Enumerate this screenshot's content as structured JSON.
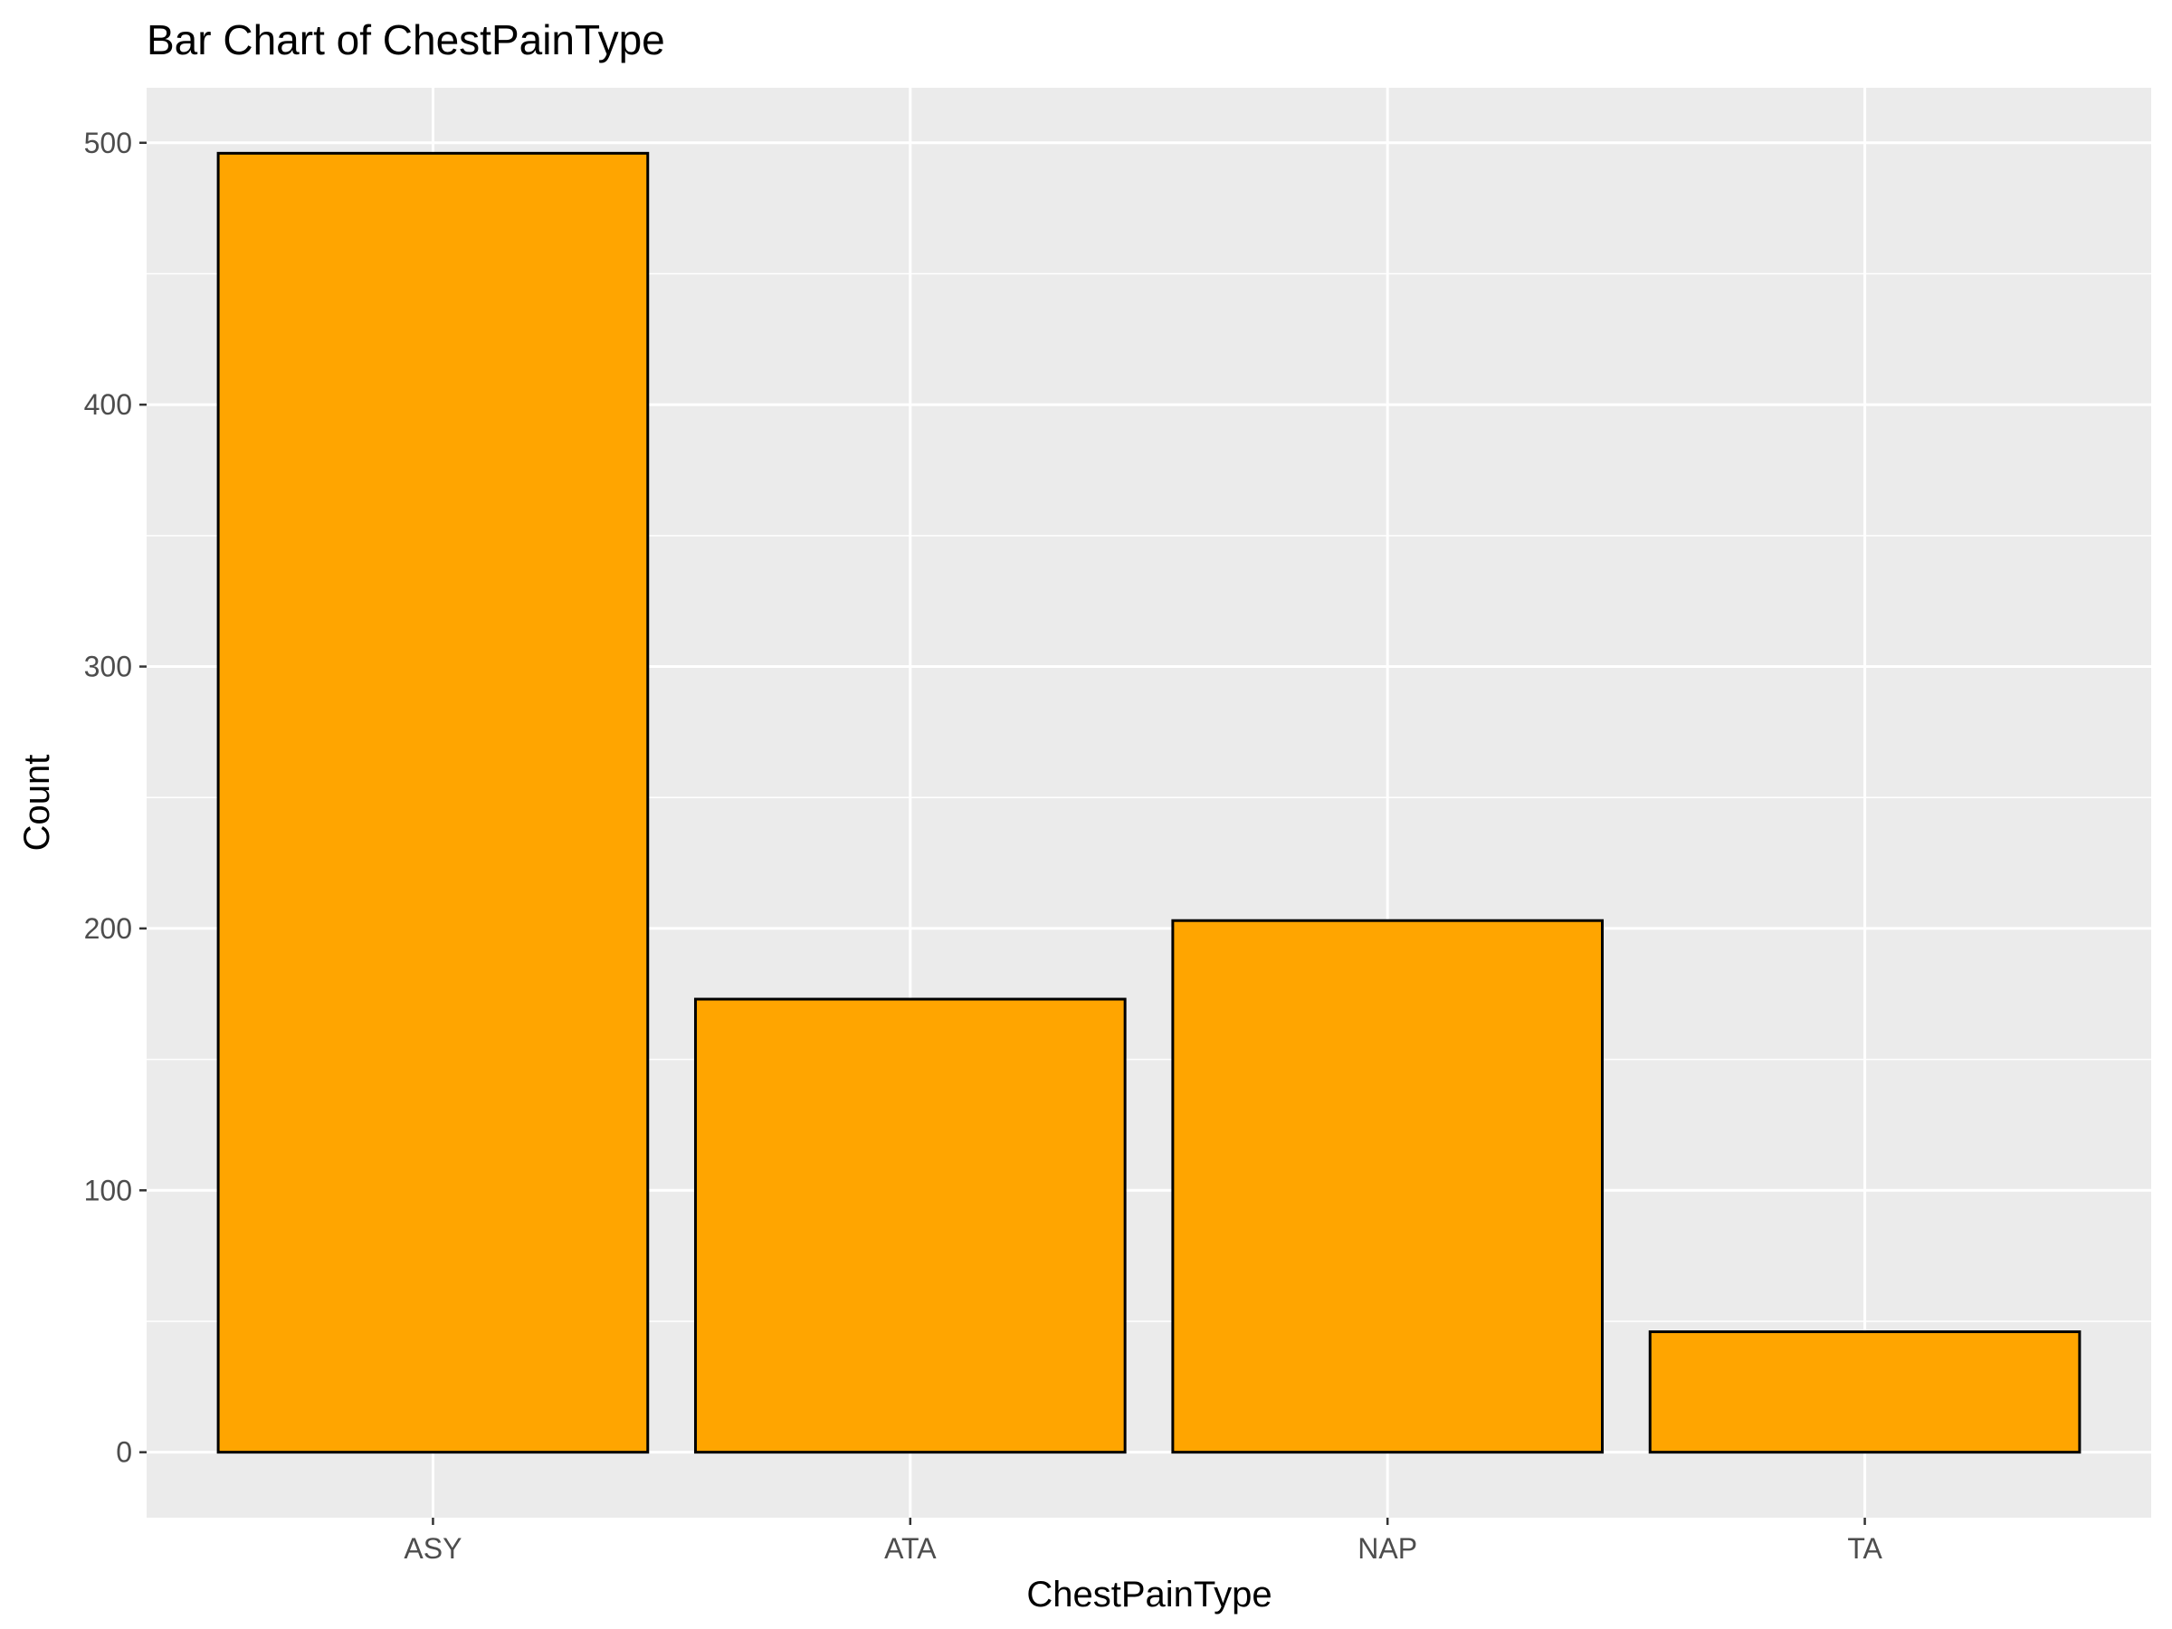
{
  "chart_data": {
    "type": "bar",
    "title": "Bar Chart of ChestPainType",
    "xlabel": "ChestPainType",
    "ylabel": "Count",
    "categories": [
      "ASY",
      "ATA",
      "NAP",
      "TA"
    ],
    "values": [
      496,
      173,
      203,
      46
    ],
    "ylim": [
      -25,
      521
    ],
    "yticks": [
      0,
      100,
      200,
      300,
      400,
      500
    ],
    "grid": true,
    "legend": "none",
    "colors": {
      "bar_fill": "#FFA500",
      "bar_outline": "#000000",
      "panel_background": "#EBEBEB",
      "grid_line": "#FFFFFF",
      "tick_label": "#4D4D4D"
    }
  }
}
